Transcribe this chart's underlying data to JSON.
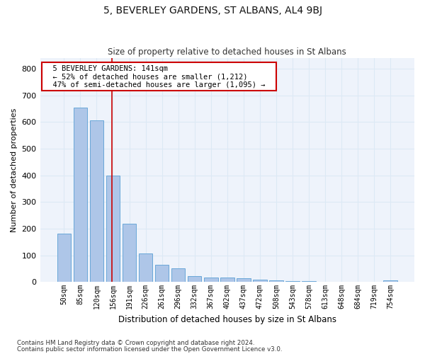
{
  "title": "5, BEVERLEY GARDENS, ST ALBANS, AL4 9BJ",
  "subtitle": "Size of property relative to detached houses in St Albans",
  "xlabel": "Distribution of detached houses by size in St Albans",
  "ylabel": "Number of detached properties",
  "bar_labels": [
    "50sqm",
    "85sqm",
    "120sqm",
    "156sqm",
    "191sqm",
    "226sqm",
    "261sqm",
    "296sqm",
    "332sqm",
    "367sqm",
    "402sqm",
    "437sqm",
    "472sqm",
    "508sqm",
    "543sqm",
    "578sqm",
    "613sqm",
    "648sqm",
    "684sqm",
    "719sqm",
    "754sqm"
  ],
  "bar_values": [
    180,
    655,
    605,
    400,
    218,
    107,
    63,
    50,
    22,
    17,
    15,
    13,
    8,
    5,
    4,
    4,
    0,
    0,
    0,
    0,
    5
  ],
  "bar_color": "#aec6e8",
  "bar_edge_color": "#5a9fd4",
  "grid_color": "#dce9f5",
  "background_color": "#eef3fb",
  "vline_x": 2.93,
  "vline_color": "#cc0000",
  "annotation_text": "  5 BEVERLEY GARDENS: 141sqm  \n  ← 52% of detached houses are smaller (1,212)  \n  47% of semi-detached houses are larger (1,095) →  ",
  "annotation_box_color": "#ffffff",
  "annotation_box_edge": "#cc0000",
  "ylim": [
    0,
    840
  ],
  "yticks": [
    0,
    100,
    200,
    300,
    400,
    500,
    600,
    700,
    800
  ],
  "title_fontsize": 10,
  "subtitle_fontsize": 8.5,
  "ylabel_fontsize": 8,
  "xlabel_fontsize": 8.5,
  "footnote1": "Contains HM Land Registry data © Crown copyright and database right 2024.",
  "footnote2": "Contains public sector information licensed under the Open Government Licence v3.0."
}
